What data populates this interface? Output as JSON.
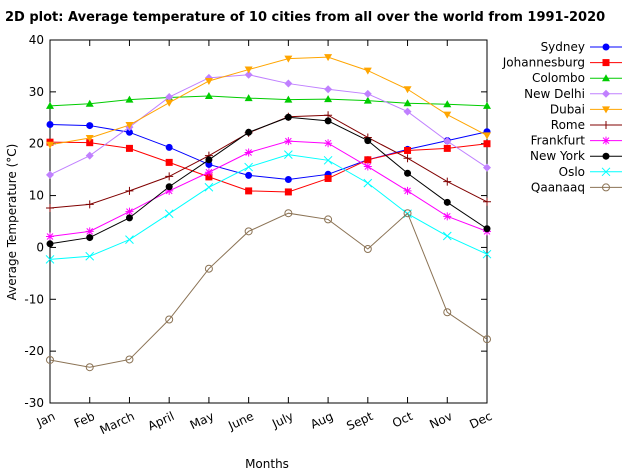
{
  "chart_data": {
    "type": "line",
    "title": "2D plot: Average temperature of 10 cities from all over the world from 1991-2020",
    "xlabel": "Months",
    "ylabel": "Average Temperature (°C)",
    "ylim": [
      -30,
      40
    ],
    "yticks": [
      -30,
      -20,
      -10,
      0,
      10,
      20,
      30,
      40
    ],
    "categories": [
      "Jan",
      "Feb",
      "March",
      "April",
      "May",
      "June",
      "July",
      "Aug",
      "Sept",
      "Oct",
      "Nov",
      "Dec"
    ],
    "grid": false,
    "legend_position": "right",
    "series": [
      {
        "name": "Sydney",
        "color": "#0000ff",
        "marker": "circle",
        "values": [
          23.7,
          23.5,
          22.2,
          19.3,
          16.0,
          13.9,
          13.1,
          14.1,
          16.9,
          18.9,
          20.6,
          22.3
        ]
      },
      {
        "name": "Johannesburg",
        "color": "#ff0000",
        "marker": "square",
        "values": [
          20.3,
          20.2,
          19.1,
          16.4,
          13.6,
          10.9,
          10.7,
          13.3,
          16.9,
          18.7,
          19.1,
          20.0
        ]
      },
      {
        "name": "Colombo",
        "color": "#00cc00",
        "marker": "triangle",
        "values": [
          27.3,
          27.7,
          28.5,
          28.9,
          29.2,
          28.8,
          28.5,
          28.6,
          28.3,
          27.8,
          27.6,
          27.3
        ]
      },
      {
        "name": "New Delhi",
        "color": "#c080ff",
        "marker": "diamond",
        "values": [
          14.0,
          17.7,
          23.2,
          29.0,
          32.7,
          33.3,
          31.6,
          30.5,
          29.6,
          26.2,
          20.5,
          15.4
        ]
      },
      {
        "name": "Dubai",
        "color": "#ffa500",
        "marker": "triangle-down",
        "values": [
          19.8,
          21.1,
          23.6,
          27.9,
          32.1,
          34.3,
          36.4,
          36.7,
          34.1,
          30.5,
          25.6,
          21.6
        ]
      },
      {
        "name": "Rome",
        "color": "#800000",
        "marker": "plus",
        "values": [
          7.6,
          8.3,
          10.9,
          13.7,
          17.7,
          22.1,
          25.2,
          25.5,
          21.2,
          17.2,
          12.7,
          8.8
        ]
      },
      {
        "name": "Frankfurt",
        "color": "#ff00ff",
        "marker": "asterisk",
        "values": [
          2.1,
          3.1,
          6.9,
          10.9,
          14.5,
          18.3,
          20.5,
          20.1,
          15.6,
          10.9,
          6.0,
          3.1
        ]
      },
      {
        "name": "New York",
        "color": "#000000",
        "marker": "circle",
        "values": [
          0.7,
          1.9,
          5.7,
          11.7,
          16.9,
          22.2,
          25.1,
          24.4,
          20.6,
          14.3,
          8.7,
          3.6
        ]
      },
      {
        "name": "Oslo",
        "color": "#00ffff",
        "marker": "x",
        "values": [
          -2.3,
          -1.7,
          1.5,
          6.5,
          11.6,
          15.5,
          17.9,
          16.8,
          12.4,
          6.5,
          2.2,
          -1.3
        ]
      },
      {
        "name": "Qaanaaq",
        "color": "#8b7355",
        "marker": "open-circle",
        "values": [
          -21.7,
          -23.1,
          -21.6,
          -13.9,
          -4.1,
          3.1,
          6.6,
          5.4,
          -0.3,
          6.6,
          -12.5,
          -17.7
        ]
      }
    ]
  }
}
